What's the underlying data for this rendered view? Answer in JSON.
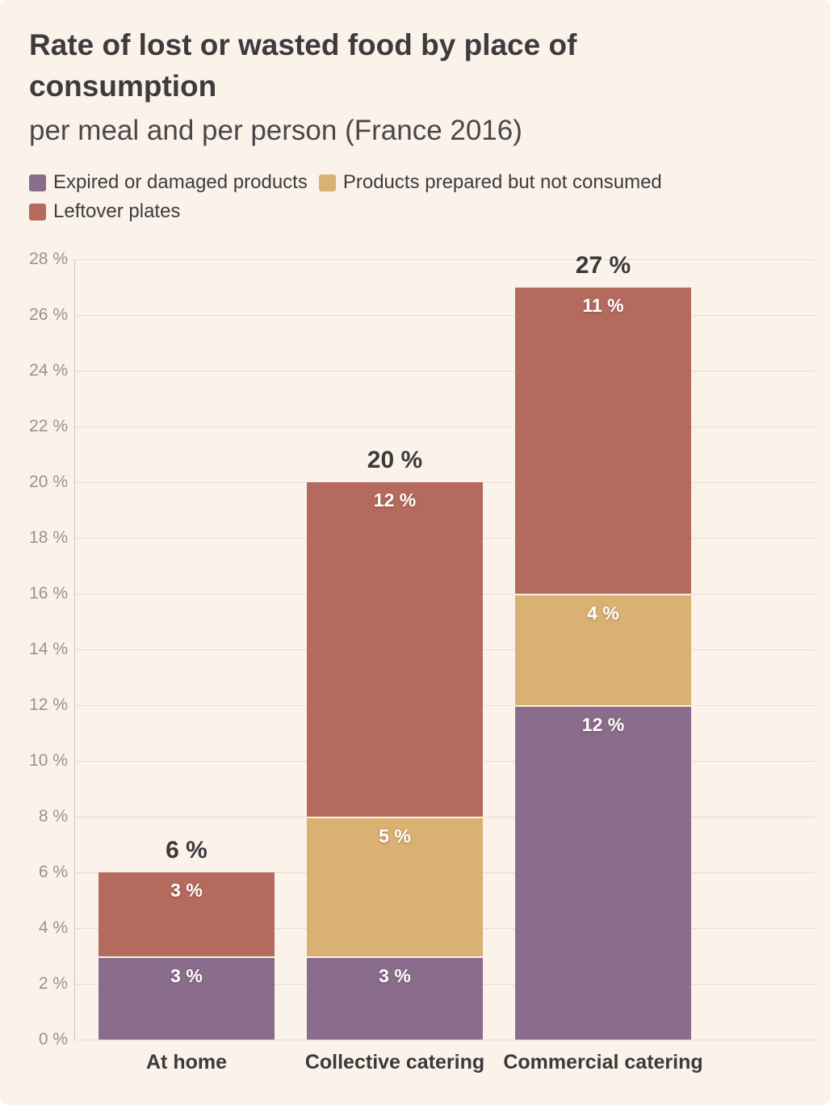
{
  "header": {
    "title": "Rate of lost or wasted food by place of consumption",
    "subtitle": "per meal and per person (France 2016)"
  },
  "colors": {
    "background": "#fbf2ea",
    "grid_line": "#e8dcd3",
    "axis_line": "#cfc2b8",
    "title_text": "#3d3b3e",
    "tick_text": "#99938d",
    "category_text": "#3b393c",
    "segment_label_text": "#ffffff"
  },
  "chart_data": {
    "type": "bar",
    "stacked": true,
    "title": "Rate of lost or wasted food by place of consumption",
    "subtitle": "per meal and per person (France 2016)",
    "categories": [
      "At home",
      "Collective catering",
      "Commercial catering"
    ],
    "series": [
      {
        "name": "Expired or damaged products",
        "color": "#8a6d8c",
        "values": [
          3,
          3,
          12
        ]
      },
      {
        "name": "Products prepared but not consumed",
        "color": "#d9b273",
        "values": [
          0,
          5,
          4
        ]
      },
      {
        "name": "Leftover plates",
        "color": "#b56a5e",
        "values": [
          3,
          12,
          11
        ]
      }
    ],
    "totals": [
      6,
      20,
      27
    ],
    "ylim": [
      0,
      28
    ],
    "y_tick_step": 2,
    "y_tick_suffix": " %",
    "value_suffix": " %",
    "grid": true,
    "legend_position": "top"
  }
}
